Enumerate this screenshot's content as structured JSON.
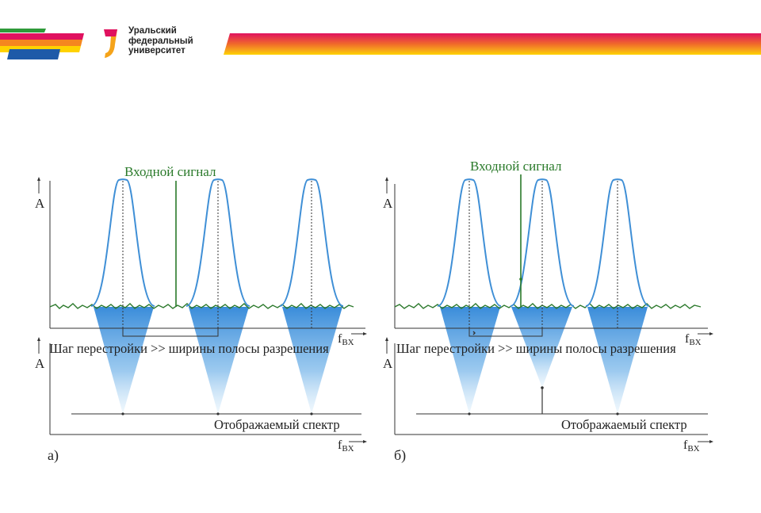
{
  "header": {
    "university_name": [
      "Уральский",
      "федеральный",
      "университет"
    ],
    "colors": {
      "red": "#e0115f",
      "orange": "#f59c1a",
      "yellow": "#ffd700",
      "green": "#2e9a3a",
      "blue": "#1e5aa8"
    }
  },
  "panel_a": {
    "input_signal_label": "Входной сигнал",
    "amplitude_axis_label": "A",
    "frequency_axis_label": "f",
    "frequency_axis_subscript": "BX",
    "step_caption": "Шаг перестройки >> ширины полосы разрешения",
    "display_caption": "Отображаемый спектр",
    "panel_label": "а)"
  },
  "panel_b": {
    "input_signal_label": "Входной сигнал",
    "amplitude_axis_label": "A",
    "frequency_axis_label": "f",
    "frequency_axis_subscript": "BX",
    "step_caption": "Шаг перестройки >> ширины полосы разрешения",
    "display_caption": "Отображаемый спектр",
    "panel_label": "б)"
  },
  "colors": {
    "filter_curve": "#3f8fd6",
    "signal": "#2a7a2a",
    "noise": "#2d7a2d",
    "cone": "#4a9de0",
    "axis": "#333333"
  }
}
